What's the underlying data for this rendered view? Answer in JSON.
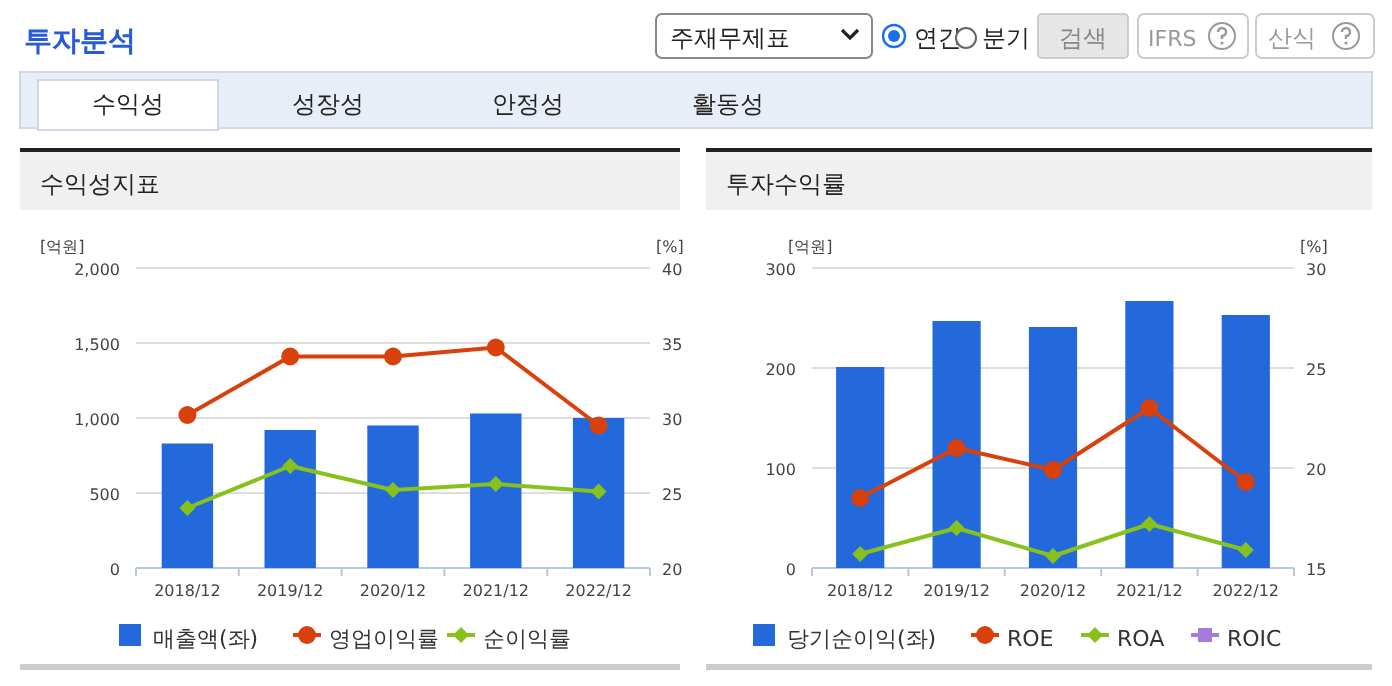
{
  "chart_data": [
    {
      "type": "other",
      "title": "투자분석",
      "annotations": [
        "주재무제표",
        "연간",
        "분기",
        "검색",
        "IFRS",
        "산식",
        "수익성",
        "성장성",
        "안정성",
        "활동성"
      ]
    },
    {
      "type": "bar",
      "title": "수익성지표",
      "ylabel": "[억원]",
      "y2label": "[%]",
      "categories": [
        "2018/12",
        "2019/12",
        "2020/12",
        "2021/12",
        "2022/12"
      ],
      "series": [
        {
          "name": "매출액(좌)",
          "type": "bar",
          "color": "#2369dc",
          "values": [
            830,
            920,
            950,
            1030,
            1000
          ]
        },
        {
          "name": "영업이익률",
          "type": "line",
          "axis": "y2",
          "marker": "circle",
          "color": "#d8400c",
          "values": [
            30.2,
            34.1,
            34.1,
            34.7,
            29.5
          ]
        },
        {
          "name": "순이익률",
          "type": "line",
          "axis": "y2",
          "marker": "diamond",
          "color": "#86c11e",
          "values": [
            24.0,
            26.8,
            25.2,
            25.6,
            25.1
          ]
        }
      ],
      "ylim": [
        0,
        2000
      ],
      "yticks": [
        0,
        500,
        {
          "value": 1000,
          "label": "1,000"
        },
        {
          "value": 1500,
          "label": "1,500"
        },
        {
          "value": 2000,
          "label": "2,000"
        }
      ],
      "y2lim": [
        20,
        40
      ],
      "y2ticks": [
        20,
        25,
        30,
        35,
        40
      ],
      "grid": "y",
      "legend": "bottom"
    },
    {
      "type": "bar",
      "title": "투자수익률",
      "ylabel": "[억원]",
      "y2label": "[%]",
      "categories": [
        "2018/12",
        "2019/12",
        "2020/12",
        "2021/12",
        "2022/12"
      ],
      "series": [
        {
          "name": "당기순이익(좌)",
          "type": "bar",
          "color": "#2369dc",
          "values": [
            201,
            247,
            241,
            267,
            253
          ]
        },
        {
          "name": "ROE",
          "type": "line",
          "axis": "y2",
          "marker": "circle",
          "color": "#d8400c",
          "values": [
            18.5,
            21.0,
            19.9,
            23.0,
            19.3
          ]
        },
        {
          "name": "ROA",
          "type": "line",
          "axis": "y2",
          "marker": "diamond",
          "color": "#86c11e",
          "values": [
            15.7,
            17.0,
            15.6,
            17.2,
            15.9
          ]
        },
        {
          "name": "ROIC",
          "type": "line",
          "axis": "y2",
          "marker": "square",
          "color": "#a57be0",
          "values": [
            null,
            null,
            null,
            null,
            null
          ]
        }
      ],
      "ylim": [
        0,
        300
      ],
      "yticks": [
        0,
        100,
        200,
        300
      ],
      "y2lim": [
        15,
        30
      ],
      "y2ticks": [
        15,
        20,
        25,
        30
      ],
      "grid": "y",
      "legend": "bottom"
    }
  ]
}
